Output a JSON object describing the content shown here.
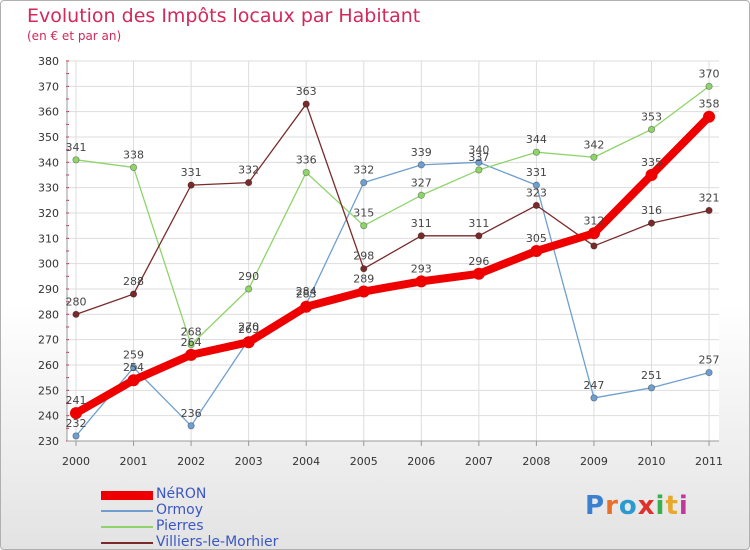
{
  "header": {
    "title": "Evolution des Impôts locaux par Habitant",
    "subtitle": "(en € et par an)"
  },
  "chart_data": {
    "type": "line",
    "title": "Evolution des Impôts locaux par Habitant",
    "subtitle": "(en € et par an)",
    "xlabel": "",
    "ylabel": "",
    "categories": [
      "2000",
      "2001",
      "2002",
      "2003",
      "2004",
      "2005",
      "2006",
      "2007",
      "2008",
      "2009",
      "2010",
      "2011"
    ],
    "ylim": [
      230,
      380
    ],
    "yticks": [
      230,
      240,
      250,
      260,
      270,
      280,
      290,
      300,
      310,
      320,
      330,
      340,
      350,
      360,
      370,
      380
    ],
    "grid": true,
    "legend_position": "bottom-left",
    "series": [
      {
        "name": "NéRON",
        "color": "#ee0000",
        "emphasis": true,
        "values": [
          241,
          254,
          264,
          269,
          283,
          289,
          293,
          296,
          305,
          312,
          335,
          358
        ]
      },
      {
        "name": "Ormoy",
        "color": "#6f9fcf",
        "emphasis": false,
        "values": [
          232,
          259,
          236,
          270,
          284,
          332,
          339,
          340,
          331,
          247,
          251,
          257
        ]
      },
      {
        "name": "Pierres",
        "color": "#8fd46a",
        "emphasis": false,
        "values": [
          341,
          338,
          268,
          290,
          336,
          315,
          327,
          337,
          344,
          342,
          353,
          370
        ]
      },
      {
        "name": "Villiers-le-Morhier",
        "color": "#7a2a2a",
        "emphasis": false,
        "values": [
          280,
          288,
          331,
          332,
          363,
          298,
          311,
          311,
          323,
          307,
          316,
          321
        ]
      }
    ],
    "data_labels": [
      {
        "series": "NéRON",
        "values": [
          "241",
          "254",
          "264",
          "269",
          "283",
          "289",
          "293",
          "296",
          "305",
          "312",
          "335",
          "358"
        ]
      },
      {
        "series": "Ormoy",
        "values": [
          "232",
          "259",
          "236",
          "270",
          "284",
          "332",
          "339",
          "340",
          "331",
          "247",
          "251",
          "257"
        ]
      },
      {
        "series": "Pierres",
        "values": [
          "341",
          "338",
          "268",
          "290",
          "336",
          "315",
          "327",
          "337",
          "344",
          "342",
          "353",
          "370"
        ]
      },
      {
        "series": "Villiers-le-Morhier",
        "values": [
          "280",
          "288",
          "331",
          "332",
          "363",
          "298",
          "311",
          "311",
          "323",
          "",
          "316",
          "321"
        ]
      }
    ]
  },
  "legend": {
    "items": [
      {
        "label": "NéRON",
        "color": "#ee0000"
      },
      {
        "label": "Ormoy",
        "color": "#6f9fcf"
      },
      {
        "label": "Pierres",
        "color": "#8fd46a"
      },
      {
        "label": "Villiers-le-Morhier",
        "color": "#7a2a2a"
      }
    ]
  },
  "logo": {
    "text": "Proxiti",
    "colors": [
      "#3a7fd0",
      "#e8702a",
      "#2a9ad0",
      "#e0302a",
      "#3ab04a",
      "#e8a82a",
      "#c03a9a"
    ]
  }
}
